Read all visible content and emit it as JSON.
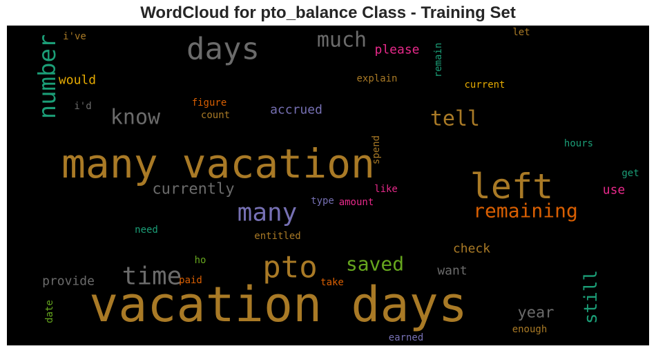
{
  "chart_data": {
    "type": "wordcloud",
    "title": "WordCloud for pto_balance Class - Training Set",
    "background": "#000000",
    "words": [
      {
        "text": "vacation days",
        "color": "#a97a26"
      },
      {
        "text": "many vacation",
        "color": "#a97a26"
      },
      {
        "text": "left",
        "color": "#a97a26"
      },
      {
        "text": "pto",
        "color": "#a97a26"
      },
      {
        "text": "days",
        "color": "#6b6b6b"
      },
      {
        "text": "many",
        "color": "#7670b3"
      },
      {
        "text": "time",
        "color": "#6b6b6b"
      },
      {
        "text": "remaining",
        "color": "#d95f02"
      },
      {
        "text": "number",
        "color": "#1b9e77"
      },
      {
        "text": "know",
        "color": "#6b6b6b"
      },
      {
        "text": "much",
        "color": "#6b6b6b"
      },
      {
        "text": "tell",
        "color": "#a97a26"
      },
      {
        "text": "saved",
        "color": "#66a61e"
      },
      {
        "text": "still",
        "color": "#1b9e77"
      },
      {
        "text": "currently",
        "color": "#6b6b6b"
      },
      {
        "text": "year",
        "color": "#6b6b6b"
      },
      {
        "text": "accrued",
        "color": "#7670b3"
      },
      {
        "text": "please",
        "color": "#e7298a"
      },
      {
        "text": "would",
        "color": "#e6ab02"
      },
      {
        "text": "provide",
        "color": "#6b6b6b"
      },
      {
        "text": "want",
        "color": "#6b6b6b"
      },
      {
        "text": "check",
        "color": "#a97a26"
      },
      {
        "text": "use",
        "color": "#e7298a"
      },
      {
        "text": "figure",
        "color": "#d95f02"
      },
      {
        "text": "count",
        "color": "#a97a26"
      },
      {
        "text": "explain",
        "color": "#a97a26"
      },
      {
        "text": "current",
        "color": "#e6ab02"
      },
      {
        "text": "hours",
        "color": "#1b9e77"
      },
      {
        "text": "get",
        "color": "#1b9e77"
      },
      {
        "text": "like",
        "color": "#e7298a"
      },
      {
        "text": "amount",
        "color": "#e7298a"
      },
      {
        "text": "type",
        "color": "#7670b3"
      },
      {
        "text": "need",
        "color": "#1b9e77"
      },
      {
        "text": "entitled",
        "color": "#a97a26"
      },
      {
        "text": "ho",
        "color": "#66a61e"
      },
      {
        "text": "paid",
        "color": "#d95f02"
      },
      {
        "text": "take",
        "color": "#d95f02"
      },
      {
        "text": "earned",
        "color": "#7670b3"
      },
      {
        "text": "enough",
        "color": "#a97a26"
      },
      {
        "text": "i've",
        "color": "#a97a26"
      },
      {
        "text": "i'd",
        "color": "#6b6b6b"
      },
      {
        "text": "let",
        "color": "#a97a26"
      },
      {
        "text": "remain",
        "color": "#1b9e77"
      },
      {
        "text": "spend",
        "color": "#a97a26"
      },
      {
        "text": "date",
        "color": "#66a61e"
      }
    ]
  }
}
